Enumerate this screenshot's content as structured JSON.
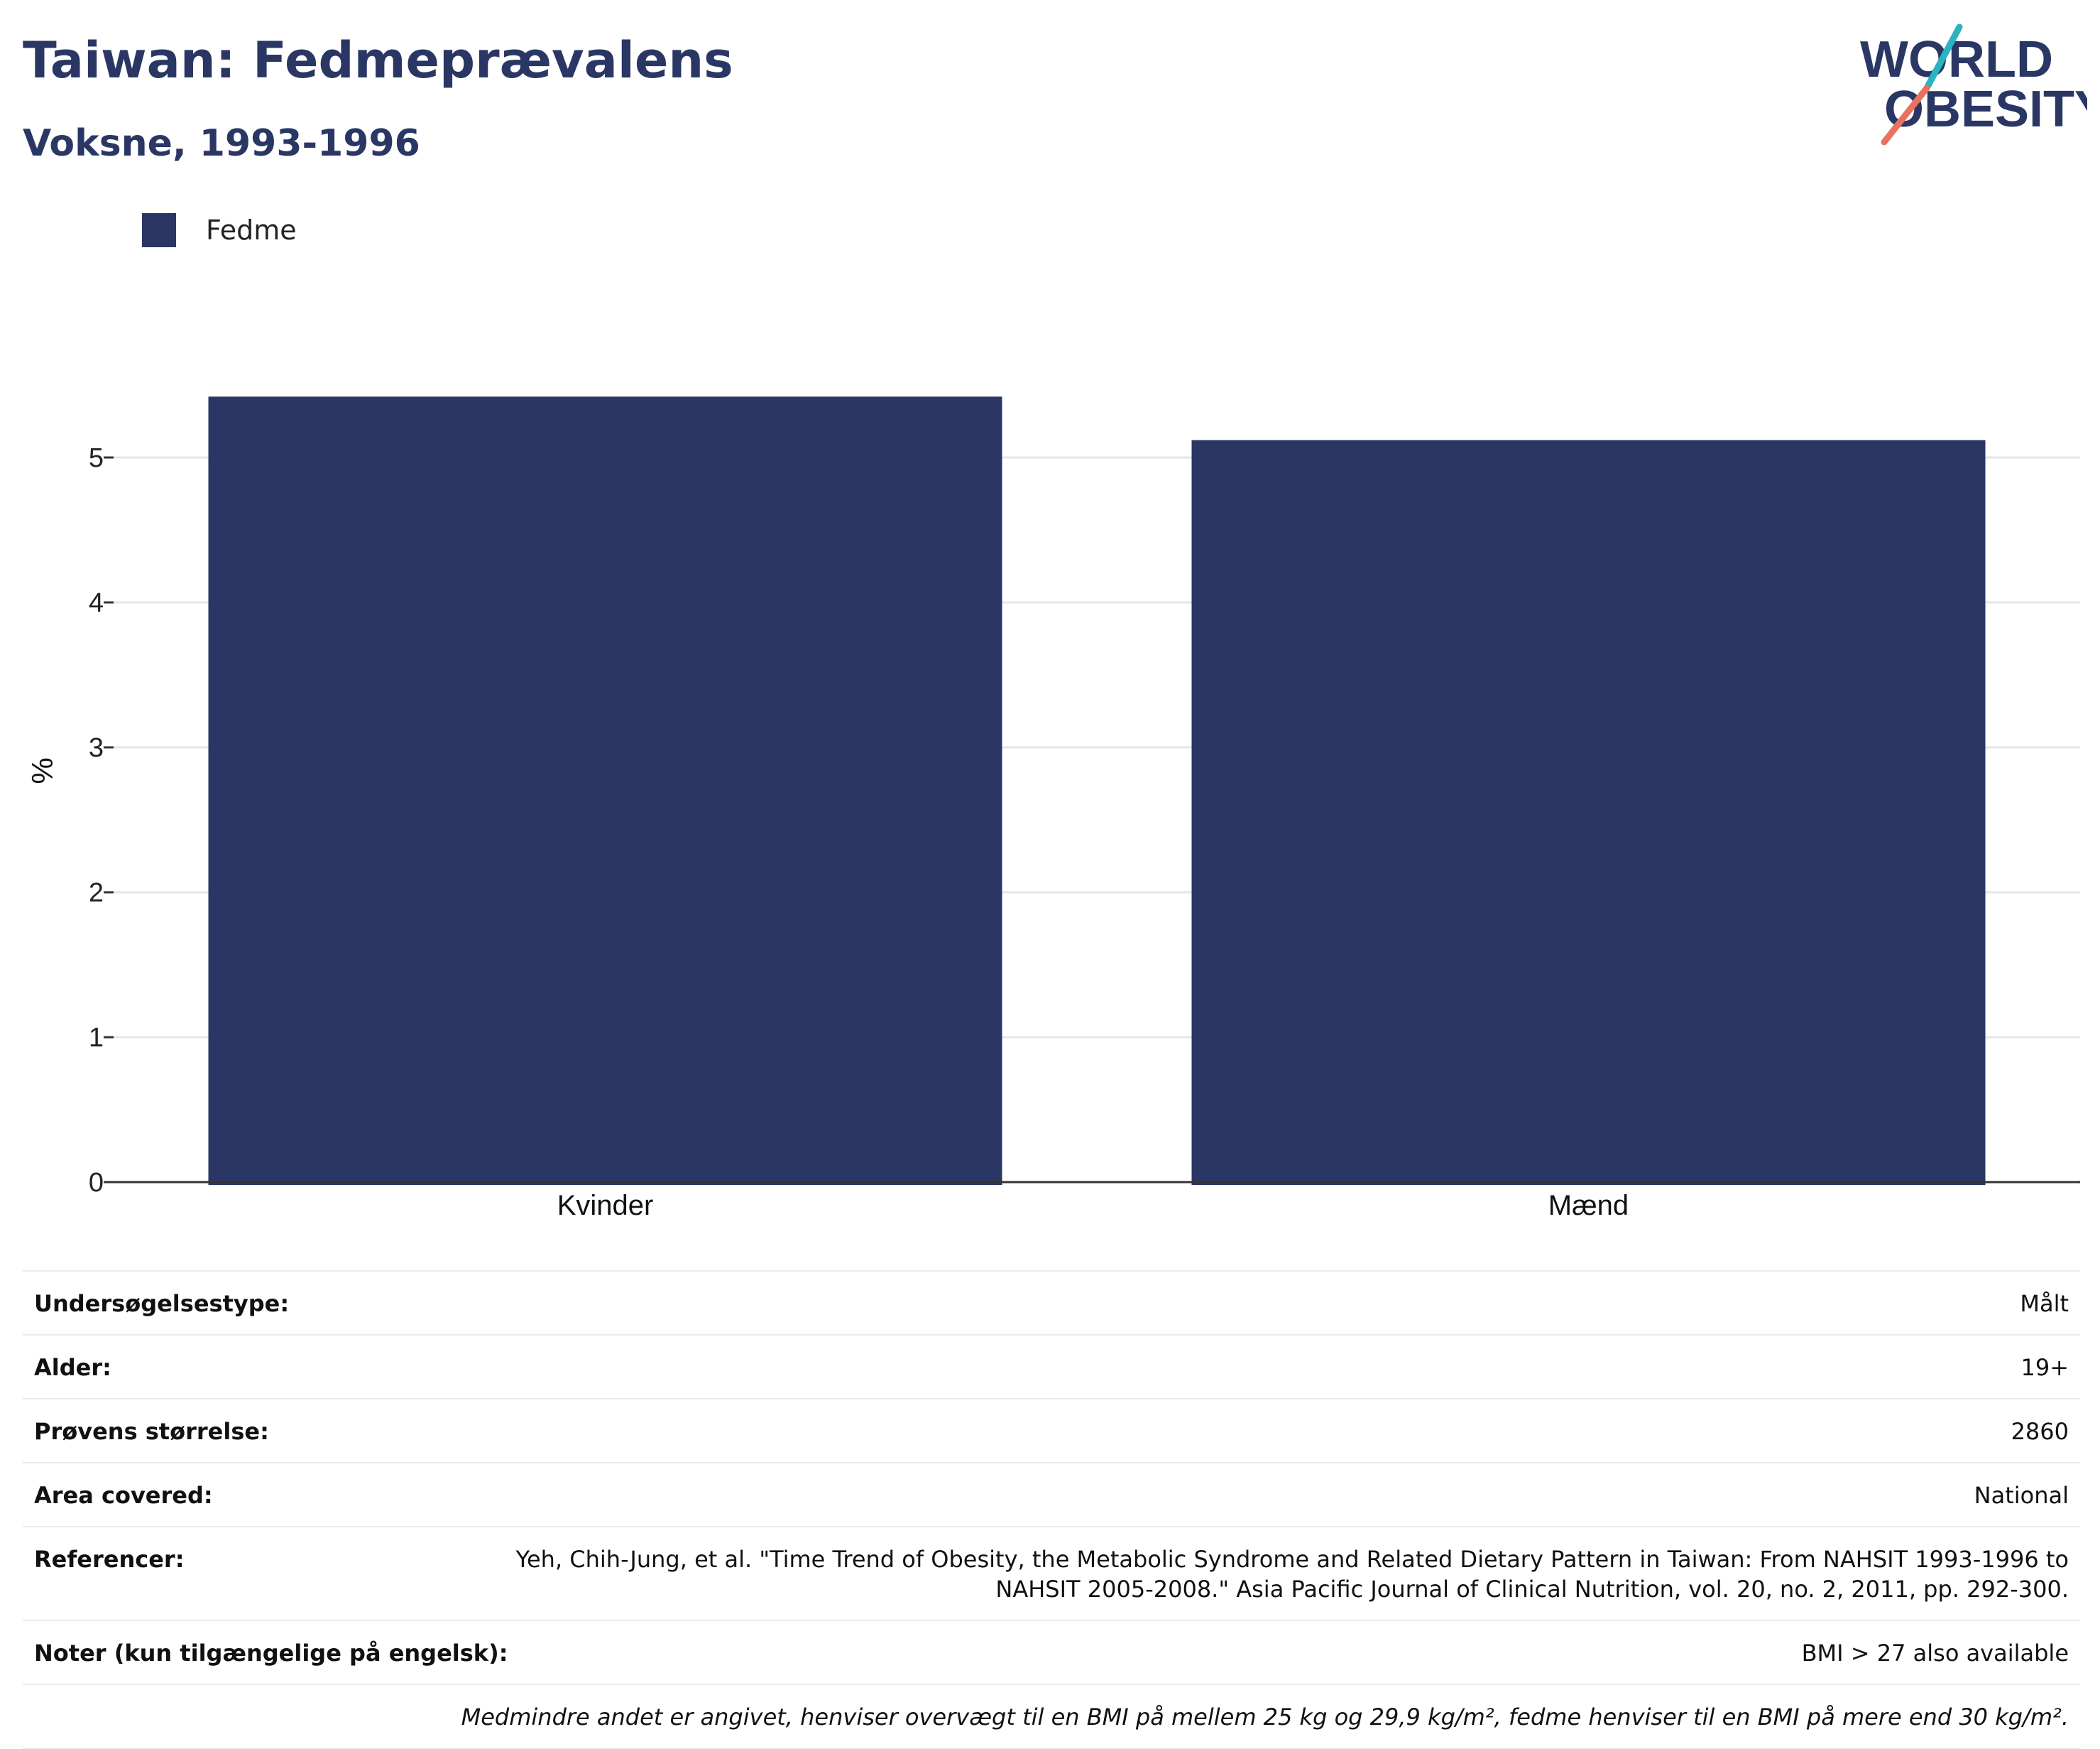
{
  "header": {
    "title": "Taiwan: Fedmeprævalens",
    "subtitle": "Voksne, 1993-1996",
    "logo_line1": "WORLD",
    "logo_line2": "OBESITY"
  },
  "chart_data": {
    "type": "bar",
    "categories": [
      "Kvinder",
      "Mænd"
    ],
    "series": [
      {
        "name": "Fedme",
        "values": [
          5.42,
          5.12
        ],
        "color": "#2a3764"
      }
    ],
    "ylabel": "%",
    "xlabel": "",
    "ylim": [
      0,
      5.7
    ],
    "yticks": [
      0,
      1,
      2,
      3,
      4,
      5
    ],
    "grid": true,
    "legend_position": "top-left"
  },
  "info": {
    "rows": [
      {
        "label": "Undersøgelsestype:",
        "value": "Målt"
      },
      {
        "label": "Alder:",
        "value": "19+"
      },
      {
        "label": "Prøvens størrelse:",
        "value": "2860"
      },
      {
        "label": "Area covered:",
        "value": "National"
      },
      {
        "label": "Referencer:",
        "value": "Yeh, Chih-Jung, et al. \"Time Trend of Obesity, the Metabolic Syndrome and Related Dietary Pattern in Taiwan: From NAHSIT 1993-1996 to NAHSIT 2005-2008.\" Asia Pacific Journal of Clinical Nutrition, vol. 20, no. 2, 2011, pp. 292-300."
      },
      {
        "label": "Noter (kun tilgængelige på engelsk):",
        "value": "BMI > 27 also available"
      }
    ],
    "footnote": "Medmindre andet er angivet, henviser overvægt til en BMI på mellem 25 kg og 29,9 kg/m², fedme henviser til en BMI på mere end 30 kg/m²."
  },
  "colors": {
    "bar": "#2a3764",
    "title": "#2a3764",
    "logo_slash_teal": "#2ab3c0",
    "logo_slash_coral": "#e8725d",
    "grid": "#e6e6e6",
    "axis": "#333333"
  }
}
